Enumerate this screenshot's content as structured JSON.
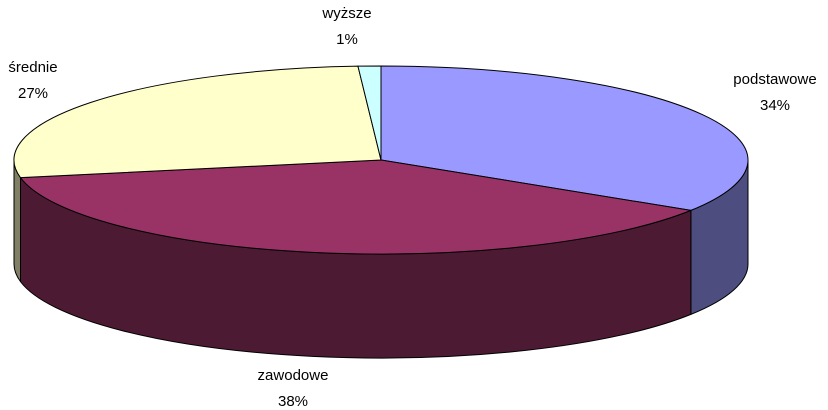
{
  "chart_data": {
    "type": "pie",
    "categories": [
      "podstawowe",
      "zawodowe",
      "średnie",
      "wyższe"
    ],
    "values": [
      34,
      38,
      27,
      1
    ],
    "value_labels": [
      "34%",
      "38%",
      "27%",
      "1%"
    ],
    "colors": [
      "#9999ff",
      "#993366",
      "#ffffcc",
      "#ccffff"
    ],
    "side_colors": [
      "#4d4d80",
      "#4d1a33",
      "#808066",
      "#668080"
    ]
  }
}
